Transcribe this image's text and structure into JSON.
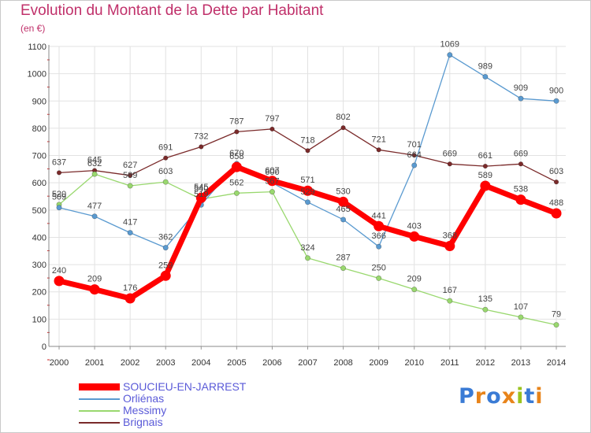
{
  "header": {
    "title": "Evolution du Montant de la Dette par Habitant",
    "unit": "(en €)"
  },
  "brand": {
    "text": "Proxiti",
    "colors": [
      "#3a7bd5",
      "#e8841a",
      "#3a7bd5",
      "#e8841a",
      "#9bc31f",
      "#3a7bd5",
      "#e8841a"
    ]
  },
  "chart_data": {
    "type": "line",
    "title": "Evolution du Montant de la Dette par Habitant",
    "subtitle": "(en €)",
    "xlabel": "",
    "ylabel": "",
    "x": [
      "2000",
      "2001",
      "2002",
      "2003",
      "2004",
      "2005",
      "2006",
      "2007",
      "2008",
      "2009",
      "2010",
      "2011",
      "2012",
      "2013",
      "2014"
    ],
    "ylim": [
      0,
      1100
    ],
    "yticks": [
      0,
      100,
      200,
      300,
      400,
      500,
      600,
      700,
      800,
      900,
      1000,
      1100
    ],
    "grid": true,
    "legend_position": "bottom-left",
    "series": [
      {
        "name": "Brignais",
        "color": "#7a2a2a",
        "width": 1.3,
        "marker": 2.8,
        "values": [
          637,
          645,
          627,
          691,
          732,
          787,
          797,
          718,
          802,
          721,
          701,
          669,
          661,
          669,
          603
        ]
      },
      {
        "name": "Messimy",
        "color": "#99d86e",
        "width": 1.3,
        "marker": 3.2,
        "values": [
          520,
          632,
          589,
          603,
          540,
          562,
          567,
          324,
          287,
          250,
          209,
          167,
          135,
          107,
          79
        ]
      },
      {
        "name": "Orliénas",
        "color": "#5a9ad0",
        "width": 1.3,
        "marker": 3.2,
        "values": [
          509,
          477,
          417,
          362,
          519,
          670,
          600,
          529,
          465,
          366,
          664,
          1069,
          989,
          909,
          900
        ]
      },
      {
        "name": "SOUCIEU-EN-JARREST",
        "color": "#ff0000",
        "width": 7,
        "marker": 6.5,
        "values": [
          240,
          209,
          176,
          259,
          545,
          658,
          607,
          571,
          530,
          441,
          403,
          368,
          589,
          538,
          488
        ]
      }
    ],
    "labels": [
      {
        "text": "637",
        "year": "2000",
        "value": 637
      },
      {
        "text": "645",
        "year": "2001",
        "value": 645
      },
      {
        "text": "627",
        "year": "2002",
        "value": 627
      },
      {
        "text": "691",
        "year": "2003",
        "value": 691
      },
      {
        "text": "732",
        "year": "2004",
        "value": 732
      },
      {
        "text": "787",
        "year": "2005",
        "value": 787
      },
      {
        "text": "797",
        "year": "2006",
        "value": 797
      },
      {
        "text": "718",
        "year": "2007",
        "value": 718
      },
      {
        "text": "802",
        "year": "2008",
        "value": 802
      },
      {
        "text": "721",
        "year": "2009",
        "value": 721
      },
      {
        "text": "701",
        "year": "2010",
        "value": 701
      },
      {
        "text": "669",
        "year": "2011",
        "value": 669
      },
      {
        "text": "661",
        "year": "2012",
        "value": 661
      },
      {
        "text": "669",
        "year": "2013",
        "value": 669
      },
      {
        "text": "603",
        "year": "2014",
        "value": 603
      },
      {
        "text": "520",
        "year": "2000",
        "value": 520
      },
      {
        "text": "632",
        "year": "2001",
        "value": 632
      },
      {
        "text": "589",
        "year": "2002",
        "value": 589
      },
      {
        "text": "603",
        "year": "2003",
        "value": 603
      },
      {
        "text": "540",
        "year": "2004",
        "value": 540
      },
      {
        "text": "562",
        "year": "2005",
        "value": 562
      },
      {
        "text": "567",
        "year": "2006",
        "value": 567
      },
      {
        "text": "324",
        "year": "2007",
        "value": 324
      },
      {
        "text": "287",
        "year": "2008",
        "value": 287
      },
      {
        "text": "250",
        "year": "2009",
        "value": 250
      },
      {
        "text": "209",
        "year": "2010",
        "value": 209
      },
      {
        "text": "167",
        "year": "2011",
        "value": 167
      },
      {
        "text": "135",
        "year": "2012",
        "value": 135
      },
      {
        "text": "107",
        "year": "2013",
        "value": 107
      },
      {
        "text": "79",
        "year": "2014",
        "value": 79
      },
      {
        "text": "509",
        "year": "2000",
        "value": 509
      },
      {
        "text": "477",
        "year": "2001",
        "value": 477
      },
      {
        "text": "417",
        "year": "2002",
        "value": 417
      },
      {
        "text": "362",
        "year": "2003",
        "value": 362
      },
      {
        "text": "519",
        "year": "2004",
        "value": 519
      },
      {
        "text": "670",
        "year": "2005",
        "value": 670
      },
      {
        "text": "600",
        "year": "2006",
        "value": 600
      },
      {
        "text": "529",
        "year": "2007",
        "value": 529
      },
      {
        "text": "465",
        "year": "2008",
        "value": 465
      },
      {
        "text": "366",
        "year": "2009",
        "value": 366
      },
      {
        "text": "664",
        "year": "2010",
        "value": 664
      },
      {
        "text": "1069",
        "year": "2011",
        "value": 1069
      },
      {
        "text": "989",
        "year": "2012",
        "value": 989
      },
      {
        "text": "909",
        "year": "2013",
        "value": 909
      },
      {
        "text": "900",
        "year": "2014",
        "value": 900
      },
      {
        "text": "240",
        "year": "2000",
        "value": 240
      },
      {
        "text": "209",
        "year": "2001",
        "value": 209
      },
      {
        "text": "176",
        "year": "2002",
        "value": 176
      },
      {
        "text": "259",
        "year": "2003",
        "value": 259
      },
      {
        "text": "545",
        "year": "2004",
        "value": 545
      },
      {
        "text": "658",
        "year": "2005",
        "value": 658
      },
      {
        "text": "607",
        "year": "2006",
        "value": 607
      },
      {
        "text": "571",
        "year": "2007",
        "value": 571
      },
      {
        "text": "530",
        "year": "2008",
        "value": 530
      },
      {
        "text": "441",
        "year": "2009",
        "value": 441
      },
      {
        "text": "403",
        "year": "2010",
        "value": 403
      },
      {
        "text": "368",
        "year": "2011",
        "value": 368
      },
      {
        "text": "589",
        "year": "2012",
        "value": 589
      },
      {
        "text": "538",
        "year": "2013",
        "value": 538
      },
      {
        "text": "488",
        "year": "2014",
        "value": 488
      }
    ]
  },
  "legend": {
    "items": [
      {
        "label": "SOUCIEU-EN-JARREST",
        "color": "#ff0000",
        "thickness": "thick"
      },
      {
        "label": "Orliénas",
        "color": "#5a9ad0",
        "thickness": "thin"
      },
      {
        "label": "Messimy",
        "color": "#99d86e",
        "thickness": "thin"
      },
      {
        "label": "Brignais",
        "color": "#7a2a2a",
        "thickness": "thin"
      }
    ]
  }
}
